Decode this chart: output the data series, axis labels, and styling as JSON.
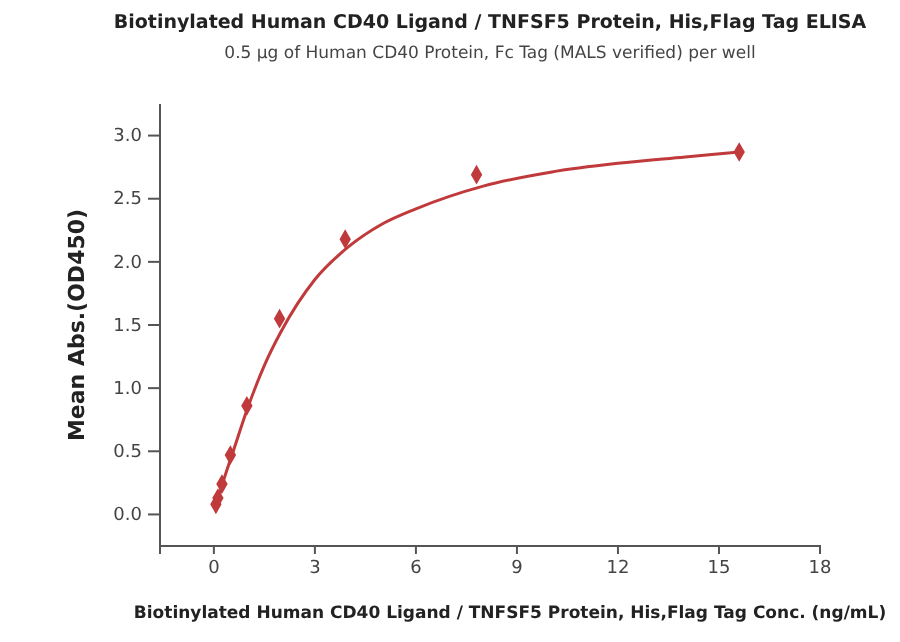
{
  "chart_data": {
    "type": "scatter",
    "title": "Biotinylated Human CD40 Ligand / TNFSF5 Protein, His,Flag Tag ELISA",
    "subtitle": "0.5 μg of Human CD40 Protein, Fc Tag (MALS verified) per well",
    "xlabel": "Biotinylated Human CD40 Ligand / TNFSF5 Protein, His,Flag Tag Conc. (ng/mL)",
    "ylabel": "Mean Abs.(OD450)",
    "xlim": [
      -1.6,
      18
    ],
    "ylim": [
      -0.25,
      3.25
    ],
    "xticks": [
      0,
      3,
      6,
      9,
      12,
      15,
      18
    ],
    "yticks": [
      {
        "value": 0,
        "label": "0.0"
      },
      {
        "value": 0.5,
        "label": "0.5"
      },
      {
        "value": 1,
        "label": "1.0"
      },
      {
        "value": 1.5,
        "label": "1.5"
      },
      {
        "value": 2,
        "label": "2.0"
      },
      {
        "value": 2.5,
        "label": "2.5"
      },
      {
        "value": 3,
        "label": "3.0"
      }
    ],
    "grid": false,
    "series": [
      {
        "type": "line",
        "color": "#c0393b",
        "marker": "none",
        "x": [
          0.06,
          0.3,
          0.6,
          1,
          1.5,
          2,
          3,
          4,
          5,
          6,
          8,
          10,
          12,
          14,
          15.6
        ],
        "values": [
          0.06,
          0.28,
          0.52,
          0.84,
          1.18,
          1.45,
          1.86,
          2.12,
          2.3,
          2.42,
          2.6,
          2.71,
          2.78,
          2.83,
          2.87
        ]
      },
      {
        "color": "#c0393b",
        "marker": "diamond",
        "x": [
          0.06,
          0.12,
          0.24,
          0.49,
          0.98,
          1.95,
          3.9,
          7.8,
          15.6
        ],
        "values": [
          0.08,
          0.13,
          0.24,
          0.47,
          0.86,
          1.55,
          2.18,
          2.69,
          2.87
        ]
      }
    ]
  }
}
